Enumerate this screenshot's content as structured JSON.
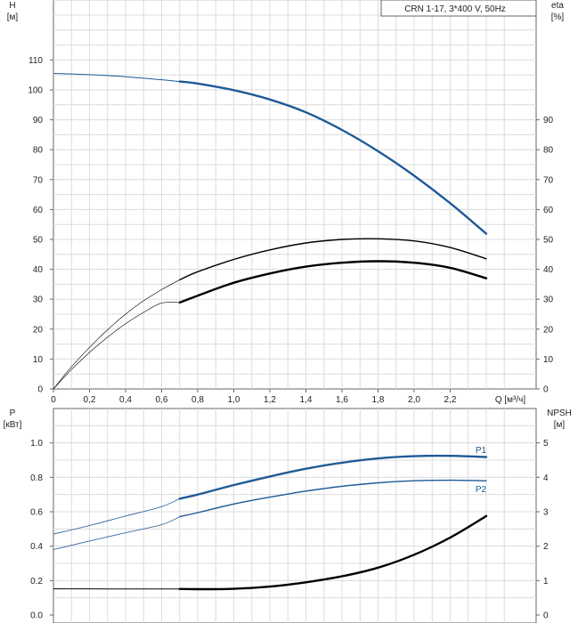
{
  "chart_data": [
    {
      "type": "line",
      "title": "CRN 1-17, 3*400 V, 50Hz",
      "y_left_label": [
        "H",
        "[м]"
      ],
      "y_right_label": [
        "eta",
        "[%]"
      ],
      "xlabel": "Q [м³/ч]",
      "xlim": [
        0,
        2.6
      ],
      "ylim": [
        0,
        120
      ],
      "x_ticks": [
        "0",
        "0,2",
        "0,4",
        "0,6",
        "0,8",
        "1,0",
        "1,2",
        "1,4",
        "1,6",
        "1,8",
        "2,0",
        "2,2"
      ],
      "y_left_ticks": [
        "0",
        "10",
        "20",
        "30",
        "40",
        "50",
        "60",
        "70",
        "80",
        "90",
        "100",
        "110"
      ],
      "y_right_ticks": [
        "0",
        "10",
        "20",
        "30",
        "40",
        "50",
        "60",
        "70",
        "80",
        "90"
      ],
      "grid": true,
      "series": [
        {
          "id": "H",
          "color": "#1f5a96",
          "x": [
            0,
            0.2,
            0.4,
            0.6,
            0.7,
            0.8,
            1.0,
            1.2,
            1.4,
            1.6,
            1.8,
            2.0,
            2.2,
            2.4
          ],
          "values": [
            105.5,
            105.1,
            104.4,
            103.4,
            102.8,
            102.1,
            99.9,
            96.8,
            92.5,
            86.6,
            79.5,
            71.3,
            62.1,
            51.9
          ]
        },
        {
          "id": "eta-upper",
          "color": "#000000",
          "x": [
            0,
            0.1,
            0.2,
            0.3,
            0.4,
            0.5,
            0.6,
            0.7,
            0.8,
            1.0,
            1.2,
            1.4,
            1.6,
            1.8,
            2.0,
            2.2,
            2.4
          ],
          "values": [
            0,
            7.4,
            13.9,
            19.8,
            25.0,
            29.5,
            33.2,
            36.5,
            39.2,
            43.3,
            46.5,
            48.8,
            50.0,
            50.2,
            49.5,
            47.3,
            43.5
          ]
        },
        {
          "id": "eta-lower",
          "color": "#000000",
          "x": [
            0,
            0.1,
            0.2,
            0.3,
            0.4,
            0.5,
            0.6,
            0.7,
            0.8,
            1.0,
            1.2,
            1.4,
            1.6,
            1.8,
            2.0,
            2.2,
            2.4
          ],
          "values": [
            0,
            6.5,
            12.2,
            17.3,
            21.8,
            25.6,
            28.7,
            28.9,
            31.2,
            35.5,
            38.6,
            40.9,
            42.2,
            42.7,
            42.2,
            40.5,
            37.0
          ]
        }
      ]
    },
    {
      "type": "line",
      "y_left_label": [
        "P",
        "[кВт]"
      ],
      "y_right_label": [
        "NPSH",
        "[м]"
      ],
      "xlim": [
        0,
        2.6
      ],
      "ylim": [
        0,
        1.2
      ],
      "y_left_ticks": [
        "0.0",
        "0.2",
        "0.4",
        "0.6",
        "0.8",
        "1.0"
      ],
      "y_right_ticks": [
        "0",
        "1",
        "2",
        "3",
        "4",
        "5"
      ],
      "grid": true,
      "series": [
        {
          "id": "P1",
          "name": "P1",
          "color": "#1f5a96",
          "x": [
            0,
            0.2,
            0.4,
            0.6,
            0.7,
            0.8,
            1.0,
            1.2,
            1.4,
            1.6,
            1.8,
            2.0,
            2.2,
            2.4
          ],
          "values": [
            0.47,
            0.52,
            0.575,
            0.63,
            0.676,
            0.7,
            0.755,
            0.805,
            0.85,
            0.885,
            0.91,
            0.923,
            0.925,
            0.918
          ]
        },
        {
          "id": "P2",
          "name": "P2",
          "color": "#1f5a96",
          "x": [
            0,
            0.2,
            0.4,
            0.6,
            0.7,
            0.8,
            1.0,
            1.2,
            1.4,
            1.6,
            1.8,
            2.0,
            2.2,
            2.4
          ],
          "values": [
            0.38,
            0.43,
            0.478,
            0.525,
            0.571,
            0.595,
            0.645,
            0.685,
            0.72,
            0.748,
            0.768,
            0.78,
            0.783,
            0.78
          ]
        },
        {
          "id": "NPSH",
          "color": "#000000",
          "x": [
            0,
            0.2,
            0.4,
            0.6,
            0.7,
            0.8,
            1.0,
            1.2,
            1.4,
            1.6,
            1.8,
            2.0,
            2.2,
            2.4
          ],
          "values": [
            0.152,
            0.152,
            0.151,
            0.151,
            0.151,
            0.15,
            0.152,
            0.165,
            0.19,
            0.225,
            0.275,
            0.35,
            0.45,
            0.575
          ]
        }
      ]
    }
  ]
}
